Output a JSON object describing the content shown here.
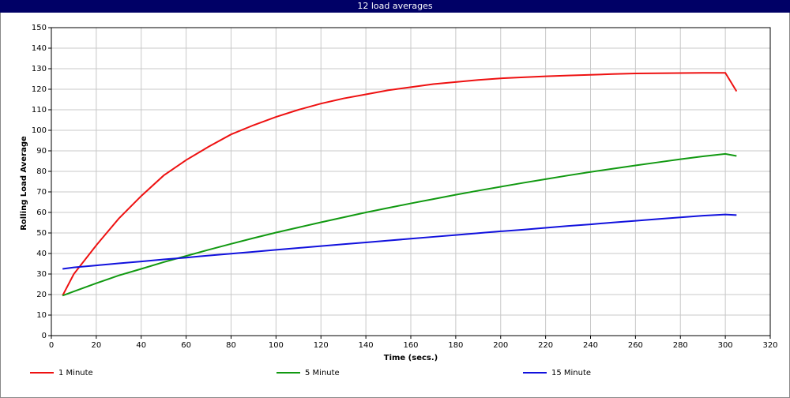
{
  "chart_data": {
    "type": "line",
    "title": "12 load averages",
    "x_label": "Time (secs.)",
    "y_label": "Rolling Load Average",
    "x": [
      5,
      10,
      20,
      30,
      40,
      50,
      60,
      70,
      80,
      90,
      100,
      110,
      120,
      130,
      140,
      150,
      160,
      170,
      180,
      190,
      200,
      210,
      220,
      230,
      240,
      250,
      260,
      270,
      280,
      290,
      300,
      305
    ],
    "series": [
      {
        "name": "1 Minute",
        "color": "#ee1111",
        "values": [
          19.5,
          30,
          44,
          57,
          68,
          78,
          85.5,
          92,
          98,
          102.5,
          106.5,
          110,
          113,
          115.5,
          117.5,
          119.5,
          121,
          122.5,
          123.5,
          124.5,
          125.3,
          125.8,
          126.3,
          126.7,
          127,
          127.4,
          127.7,
          127.8,
          127.9,
          128,
          128,
          119
        ]
      },
      {
        "name": "5 Minute",
        "color": "#119911",
        "values": [
          19.5,
          21.5,
          25.5,
          29.3,
          32.5,
          35.8,
          38.8,
          41.8,
          44.7,
          47.5,
          50.2,
          52.7,
          55.2,
          57.6,
          60,
          62.2,
          64.4,
          66.5,
          68.6,
          70.6,
          72.5,
          74.4,
          76.2,
          78,
          79.7,
          81.3,
          82.9,
          84.4,
          85.9,
          87.3,
          88.5,
          87.5
        ]
      },
      {
        "name": "15 Minute",
        "color": "#1111dd",
        "values": [
          32.5,
          33.2,
          34.2,
          35.2,
          36.1,
          37.1,
          38,
          39,
          39.9,
          40.8,
          41.8,
          42.7,
          43.6,
          44.5,
          45.4,
          46.3,
          47.2,
          48.1,
          49,
          49.9,
          50.8,
          51.6,
          52.5,
          53.4,
          54.2,
          55.1,
          55.9,
          56.8,
          57.6,
          58.4,
          59,
          58.7
        ]
      }
    ],
    "xlim": [
      0,
      320
    ],
    "xticks": [
      0,
      20,
      40,
      60,
      80,
      100,
      120,
      140,
      160,
      180,
      200,
      220,
      240,
      260,
      280,
      300,
      320
    ],
    "ylim": [
      0,
      150
    ],
    "yticks": [
      0,
      10,
      20,
      30,
      40,
      50,
      60,
      70,
      80,
      90,
      100,
      110,
      120,
      130,
      140,
      150
    ],
    "grid": true,
    "legend": "bottom"
  }
}
